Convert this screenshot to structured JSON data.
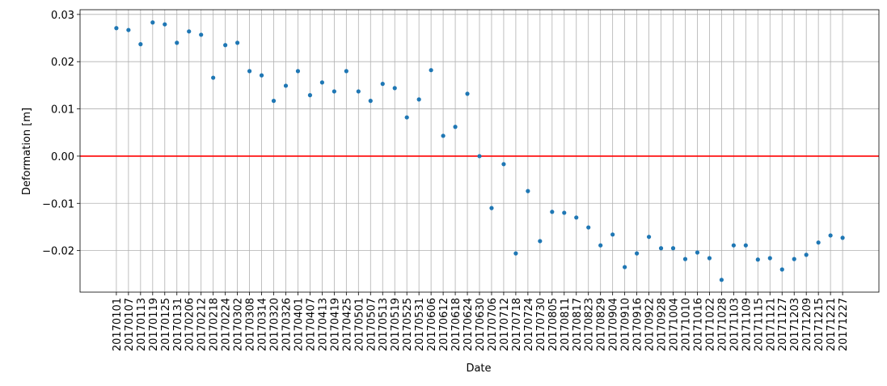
{
  "chart_data": {
    "type": "scatter",
    "xlabel": "Date",
    "ylabel": "Deformation [m]",
    "categories": [
      "20170101",
      "20170107",
      "20170113",
      "20170119",
      "20170125",
      "20170131",
      "20170206",
      "20170212",
      "20170218",
      "20170224",
      "20170302",
      "20170308",
      "20170314",
      "20170320",
      "20170326",
      "20170401",
      "20170407",
      "20170413",
      "20170419",
      "20170425",
      "20170501",
      "20170507",
      "20170513",
      "20170519",
      "20170525",
      "20170531",
      "20170606",
      "20170612",
      "20170618",
      "20170624",
      "20170630",
      "20170706",
      "20170712",
      "20170718",
      "20170724",
      "20170730",
      "20170805",
      "20170811",
      "20170817",
      "20170823",
      "20170829",
      "20170904",
      "20170910",
      "20170916",
      "20170922",
      "20170928",
      "20171004",
      "20171010",
      "20171016",
      "20171022",
      "20171028",
      "20171103",
      "20171109",
      "20171115",
      "20171121",
      "20171127",
      "20171203",
      "20171209",
      "20171215",
      "20171221",
      "20171227"
    ],
    "values": [
      0.0271,
      0.0267,
      0.0237,
      0.0283,
      0.0279,
      0.024,
      0.0264,
      0.0257,
      0.0166,
      0.0235,
      0.024,
      0.018,
      0.0171,
      0.0117,
      0.0149,
      0.018,
      0.0129,
      0.0156,
      0.0137,
      0.018,
      0.0137,
      0.0117,
      0.0153,
      0.0144,
      0.0082,
      0.012,
      0.0182,
      0.0043,
      0.0062,
      0.0132,
      0.0,
      -0.011,
      -0.0017,
      -0.0206,
      -0.0074,
      -0.018,
      -0.0118,
      -0.012,
      -0.013,
      -0.0151,
      -0.0189,
      -0.0166,
      -0.0235,
      -0.0206,
      -0.0171,
      -0.0195,
      -0.0195,
      -0.0218,
      -0.0204,
      -0.0216,
      -0.0262,
      -0.0189,
      -0.0189,
      -0.0219,
      -0.0216,
      -0.024,
      -0.0218,
      -0.0209,
      -0.0183,
      -0.0168,
      -0.0173
    ],
    "color": "#1f77b4",
    "ylim": [
      -0.0288,
      0.031
    ],
    "yticks": [
      {
        "value": -0.02,
        "label": "−0.02"
      },
      {
        "value": -0.01,
        "label": "−0.01"
      },
      {
        "value": 0,
        "label": "0.00"
      },
      0.01,
      0.02,
      0.03
    ],
    "grid": true,
    "hline": 0,
    "hline_color": "#ff0000"
  }
}
